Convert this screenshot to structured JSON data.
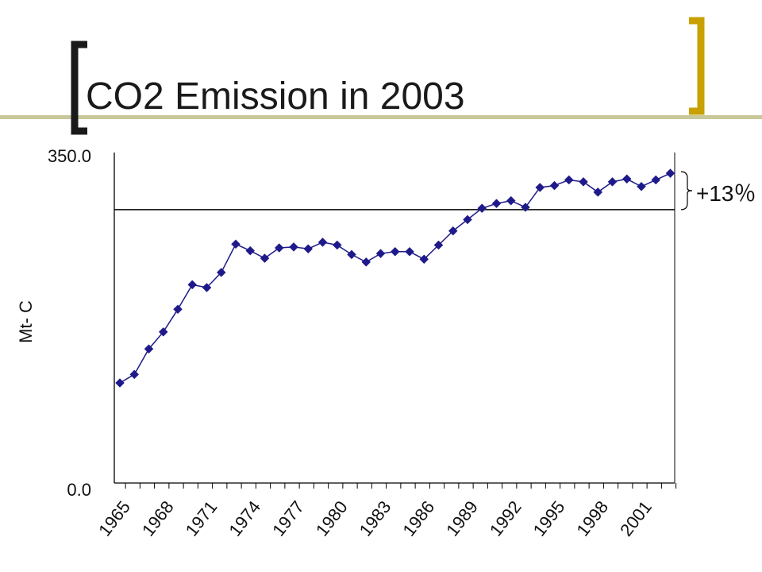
{
  "slide": {
    "title": "CO2 Emission in 2003"
  },
  "chart_data": {
    "type": "line",
    "title": "",
    "ylabel": "Mt- C",
    "xlabel": "",
    "ylim": [
      0,
      350
    ],
    "y_ticks": [
      "0.0",
      "350.0"
    ],
    "x_tick_labels": [
      "1965",
      "1968",
      "1971",
      "1974",
      "1977",
      "1980",
      "1983",
      "1986",
      "1989",
      "1992",
      "1995",
      "1998",
      "2001"
    ],
    "x": [
      1965,
      1966,
      1967,
      1968,
      1969,
      1970,
      1971,
      1972,
      1973,
      1974,
      1975,
      1976,
      1977,
      1978,
      1979,
      1980,
      1981,
      1982,
      1983,
      1984,
      1985,
      1986,
      1987,
      1988,
      1989,
      1990,
      1991,
      1992,
      1993,
      1994,
      1995,
      1996,
      1997,
      1998,
      1999,
      2000,
      2001,
      2002,
      2003
    ],
    "series": [
      {
        "values": [
          106,
          115,
          142,
          160,
          184,
          210,
          207,
          223,
          253,
          246,
          238,
          249,
          250,
          248,
          255,
          252,
          242,
          234,
          243,
          245,
          245,
          237,
          252,
          267,
          279,
          291,
          296,
          299,
          292,
          313,
          315,
          321,
          319,
          308,
          319,
          322,
          314,
          321,
          328
        ],
        "color": "#1f1a8a"
      }
    ],
    "reference_line": {
      "value": 289.5
    },
    "annotation": {
      "text": "+13％"
    },
    "grid": false,
    "legend": "none",
    "colors": {
      "title_bracket": "#1a1a1a",
      "right_bracket": "#c8a000",
      "title_underline": "#c8c89a"
    }
  }
}
